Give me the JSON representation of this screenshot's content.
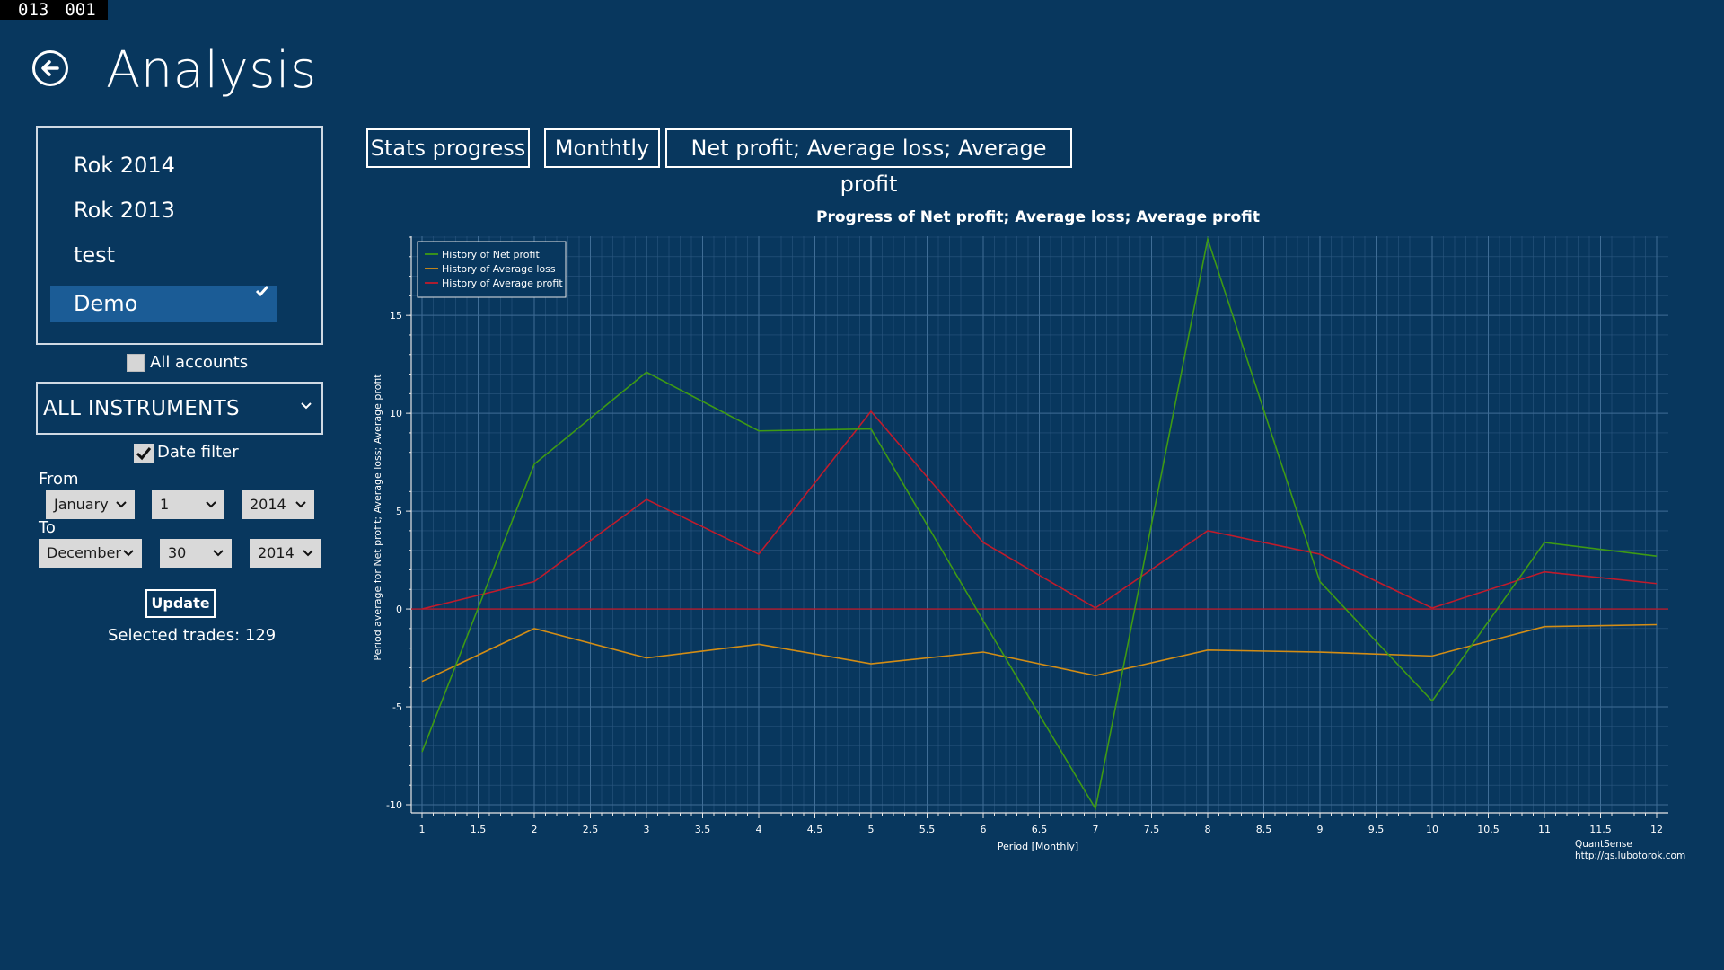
{
  "counter": [
    "013",
    "001"
  ],
  "header": {
    "title": "Analysis"
  },
  "accounts": [
    {
      "label": "Rok 2014",
      "selected": false
    },
    {
      "label": "Rok 2013",
      "selected": false
    },
    {
      "label": "test",
      "selected": false
    },
    {
      "label": "Demo",
      "selected": true
    }
  ],
  "all_accounts": {
    "label": "All accounts",
    "checked": false
  },
  "instruments": {
    "value": "ALL INSTRUMENTS"
  },
  "date_filter": {
    "label": "Date filter",
    "checked": true,
    "from_label": "From",
    "to_label": "To",
    "from": {
      "month": "January",
      "day": "1",
      "year": "2014"
    },
    "to": {
      "month": "December",
      "day": "30",
      "year": "2014"
    }
  },
  "update_label": "Update",
  "selected_trades": "Selected trades: 129",
  "toolbar": {
    "stats": "Stats progress",
    "period": "Monthtly",
    "metrics": "Net profit; Average loss; Average profit"
  },
  "chart_data": {
    "type": "line",
    "title": "Progress of Net profit; Average loss; Average profit",
    "xlabel": "Period [Monthly]",
    "ylabel": "Period average for Net profit; Average loss; Average profit",
    "x": [
      1,
      2,
      3,
      4,
      5,
      6,
      7,
      8,
      9,
      10,
      11,
      12
    ],
    "xlim": [
      1,
      12
    ],
    "ylim": [
      -10,
      19
    ],
    "x_ticks": [
      "1",
      "1.5",
      "2",
      "2.5",
      "3",
      "3.5",
      "4",
      "4.5",
      "5",
      "5.5",
      "6",
      "6.5",
      "7",
      "7.5",
      "8",
      "8.5",
      "9",
      "9.5",
      "10",
      "10.5",
      "11",
      "11.5",
      "12"
    ],
    "y_ticks": [
      "-10",
      "-5",
      "0",
      "5",
      "10",
      "15"
    ],
    "grid": true,
    "legend_position": "top-left",
    "series": [
      {
        "name": "History of Net profit",
        "color": "#3e9a14",
        "values": [
          -7.3,
          7.4,
          12.1,
          9.1,
          9.2,
          -0.6,
          -10.2,
          18.9,
          1.4,
          -4.7,
          3.4,
          2.7
        ]
      },
      {
        "name": "History of Average loss",
        "color": "#d38d15",
        "values": [
          -3.7,
          -1.0,
          -2.5,
          -1.8,
          -2.8,
          -2.2,
          -3.4,
          -2.1,
          -2.2,
          -2.4,
          -0.9,
          -0.8
        ]
      },
      {
        "name": "History of Average profit",
        "color": "#c01b2b",
        "values": [
          0.0,
          1.4,
          5.6,
          2.8,
          10.1,
          3.4,
          0.05,
          4.0,
          2.8,
          0.05,
          1.9,
          1.3
        ]
      }
    ],
    "watermark": [
      "QuantSense",
      "http://qs.lubotorok.com"
    ]
  }
}
